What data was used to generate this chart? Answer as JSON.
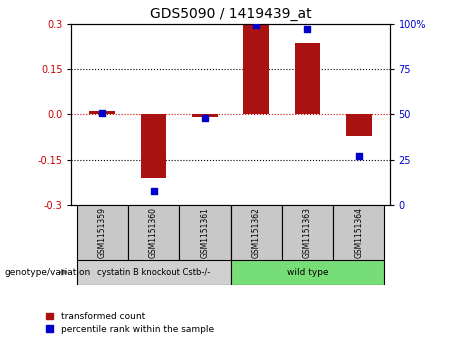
{
  "title": "GDS5090 / 1419439_at",
  "samples": [
    "GSM1151359",
    "GSM1151360",
    "GSM1151361",
    "GSM1151362",
    "GSM1151363",
    "GSM1151364"
  ],
  "transformed_count": [
    0.01,
    -0.21,
    -0.01,
    0.305,
    0.235,
    -0.07
  ],
  "percentile_rank": [
    51,
    8,
    48,
    99,
    97,
    27
  ],
  "ylim_left": [
    -0.3,
    0.3
  ],
  "ylim_right": [
    0,
    100
  ],
  "yticks_left": [
    -0.3,
    -0.15,
    0.0,
    0.15,
    0.3
  ],
  "yticks_right": [
    0,
    25,
    50,
    75,
    100
  ],
  "bar_color": "#AA1111",
  "dot_color": "#0000CC",
  "zero_line_color": "#CC0000",
  "groups": [
    {
      "label": "cystatin B knockout Cstb-/-",
      "indices": [
        0,
        1,
        2
      ],
      "color": "#d0d0d0"
    },
    {
      "label": "wild type",
      "indices": [
        3,
        4,
        5
      ],
      "color": "#77DD77"
    }
  ],
  "legend_bar_label": "transformed count",
  "legend_dot_label": "percentile rank within the sample",
  "genotype_label": "genotype/variation",
  "bar_width": 0.5
}
